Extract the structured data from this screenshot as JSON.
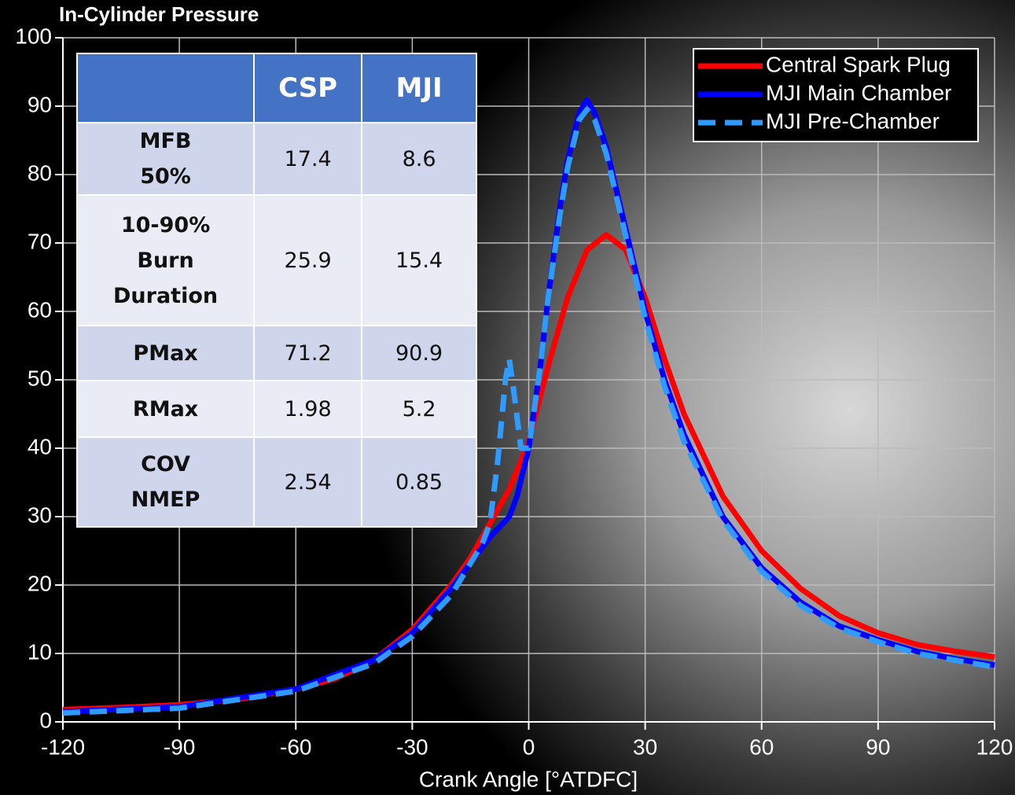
{
  "chart_data": {
    "type": "line",
    "title": "In-Cylinder Pressure",
    "x_label": "Crank Angle [°ATDFC]",
    "xlim": [
      -120,
      120
    ],
    "xticks": [
      -120,
      -90,
      -60,
      -30,
      0,
      30,
      60,
      90,
      120
    ],
    "ylim": [
      0,
      100
    ],
    "yticks": [
      0,
      10,
      20,
      30,
      40,
      50,
      60,
      70,
      80,
      90,
      100
    ],
    "grid": true,
    "legend": "top-right",
    "series": [
      {
        "name": "Central Spark Plug",
        "color": "#ff0000",
        "linestyle": "solid",
        "x": [
          -120,
          -105,
          -90,
          -75,
          -60,
          -50,
          -40,
          -30,
          -20,
          -15,
          -10,
          -5,
          0,
          5,
          10,
          15,
          20,
          25,
          30,
          35,
          40,
          50,
          60,
          70,
          80,
          90,
          100,
          110,
          120
        ],
        "values": [
          1.8,
          2.1,
          2.5,
          3.3,
          4.8,
          6.3,
          9,
          13.5,
          20,
          24,
          29,
          34,
          41,
          52,
          62,
          69,
          71.2,
          69,
          62,
          53,
          45,
          33,
          25,
          19.5,
          15.5,
          13,
          11.3,
          10.3,
          9.5
        ]
      },
      {
        "name": "MJI Main Chamber",
        "color": "#0000ff",
        "linestyle": "solid",
        "x": [
          -120,
          -90,
          -60,
          -40,
          -30,
          -20,
          -10,
          -5,
          -3,
          0,
          3,
          5,
          8,
          10,
          13,
          15,
          17,
          20,
          25,
          30,
          35,
          40,
          50,
          60,
          70,
          80,
          90,
          100,
          110,
          120
        ],
        "values": [
          1.5,
          2.2,
          4.8,
          9,
          13,
          19.5,
          27,
          30,
          33,
          40,
          52,
          62,
          75,
          82,
          89,
          90.9,
          89,
          84,
          72,
          60,
          50,
          42,
          30,
          22.5,
          17.5,
          14,
          12,
          10.3,
          9.2,
          8.3
        ]
      },
      {
        "name": "MJI Pre-Chamber",
        "color": "#2f9bff",
        "linestyle": "dashed",
        "x": [
          -120,
          -90,
          -60,
          -40,
          -30,
          -20,
          -12,
          -10,
          -8,
          -6,
          -5,
          -4,
          -2,
          0,
          3,
          5,
          8,
          10,
          13,
          15,
          17,
          20,
          25,
          30,
          35,
          40,
          50,
          60,
          70,
          80,
          90,
          100,
          110,
          120
        ],
        "values": [
          1.3,
          2,
          4.5,
          8.5,
          12.5,
          18.5,
          26,
          29,
          38,
          50,
          53,
          49,
          40,
          40,
          52,
          62,
          74,
          81,
          88,
          89.5,
          88,
          83,
          71,
          59,
          49,
          41,
          29.5,
          22,
          17,
          13.7,
          11.7,
          10,
          9,
          8
        ]
      }
    ]
  },
  "table": {
    "header": [
      "CSP",
      "MJI"
    ],
    "rows": [
      [
        "MFB 50%",
        17.4,
        8.6
      ],
      [
        "10-90% Burn Duration",
        25.9,
        15.4
      ],
      [
        "PMax",
        71.2,
        90.9
      ],
      [
        "RMax",
        1.98,
        5.2
      ],
      [
        "COV NMEP",
        2.54,
        0.85
      ]
    ]
  }
}
